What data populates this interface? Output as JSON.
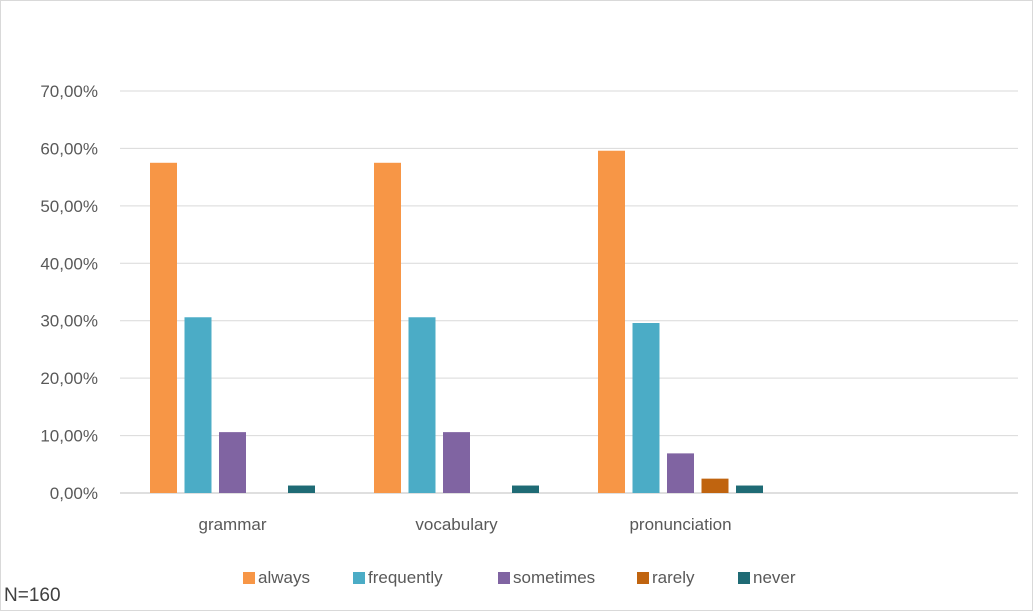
{
  "chart_data": {
    "type": "bar",
    "title": "",
    "xlabel": "",
    "ylabel": "",
    "ylim": [
      0,
      70
    ],
    "ytick_step": 10,
    "ytick_format": "0,00%",
    "grid": true,
    "legend_position": "bottom",
    "categories": [
      "grammar",
      "vocabulary",
      "pronunciation"
    ],
    "series": [
      {
        "name": "always",
        "color": "#f79646",
        "values": [
          57.5,
          57.5,
          59.6
        ]
      },
      {
        "name": "frequently",
        "color": "#4bacc6",
        "values": [
          30.6,
          30.6,
          29.6
        ]
      },
      {
        "name": "sometimes",
        "color": "#8064a2",
        "values": [
          10.6,
          10.6,
          6.9
        ]
      },
      {
        "name": "rarely",
        "color": "#c0640f",
        "values": [
          0,
          0,
          2.5
        ]
      },
      {
        "name": "never",
        "color": "#1f6b75",
        "values": [
          1.3,
          1.3,
          1.3
        ]
      }
    ]
  },
  "note": "N=160"
}
